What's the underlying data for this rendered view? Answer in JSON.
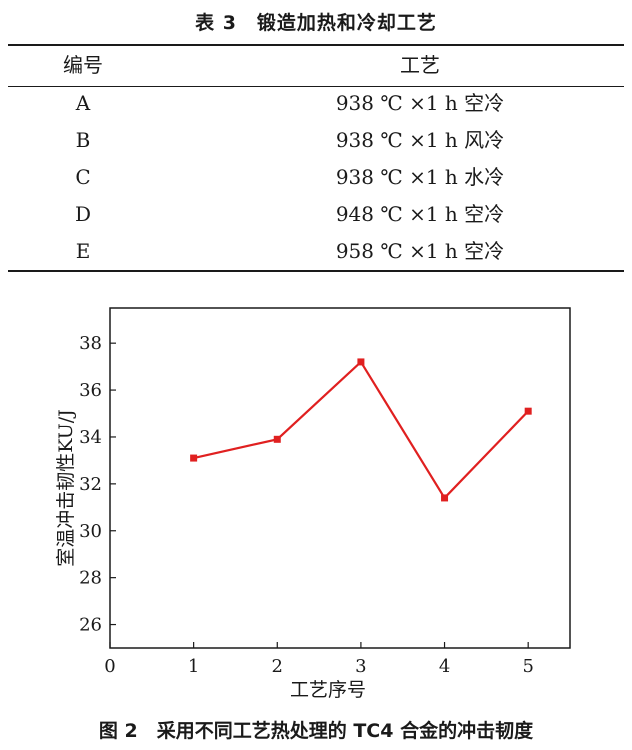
{
  "table": {
    "caption": "表 3　锻造加热和冷却工艺",
    "headers": [
      "编号",
      "工艺"
    ],
    "rows": [
      [
        "A",
        "938 ℃ ×1 h 空冷"
      ],
      [
        "B",
        "938 ℃ ×1 h 风冷"
      ],
      [
        "C",
        "938 ℃ ×1 h 水冷"
      ],
      [
        "D",
        "948 ℃ ×1 h 空冷"
      ],
      [
        "E",
        "958 ℃ ×1 h 空冷"
      ]
    ]
  },
  "figure_caption": "图 2　采用不同工艺热处理的 TC4 合金的冲击韧度",
  "chart_data": {
    "type": "line",
    "x": [
      1,
      2,
      3,
      4,
      5
    ],
    "series": [
      {
        "values": [
          33.1,
          33.9,
          37.2,
          31.4,
          35.1
        ],
        "color": "#e02020"
      }
    ],
    "xlabel": "工艺序号",
    "ylabel": "室温冲击韧性KU/J",
    "xlim": [
      0,
      5.5
    ],
    "ylim": [
      25,
      39.5
    ],
    "xticks": [
      0,
      1,
      2,
      3,
      4,
      5
    ],
    "yticks": [
      26,
      28,
      30,
      32,
      34,
      36,
      38
    ],
    "grid": false,
    "legend": "none"
  }
}
